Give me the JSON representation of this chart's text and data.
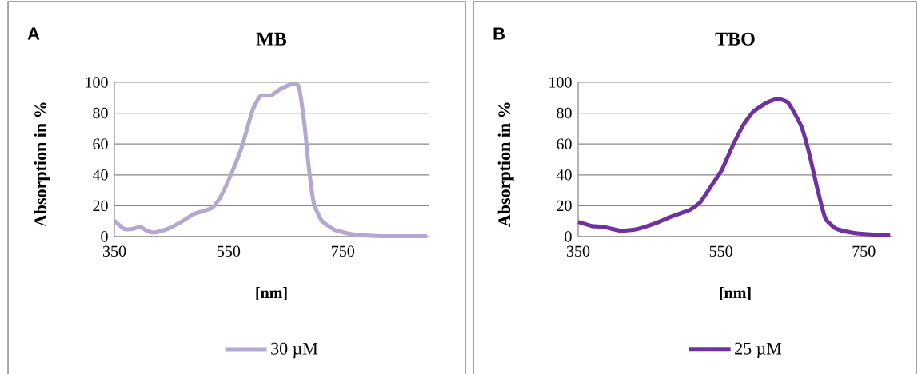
{
  "chart_data": [
    {
      "type": "line",
      "title": "MB",
      "xlabel": "[nm]",
      "ylabel": "Absorption in %",
      "annotations": [
        "A"
      ],
      "xlim": [
        350,
        900
      ],
      "xticks": [
        350,
        550,
        750
      ],
      "ylim": [
        0,
        100
      ],
      "yticks": [
        0,
        20,
        40,
        60,
        80,
        100
      ],
      "grid": "y",
      "legend": "bottom",
      "marker": "none",
      "series": [
        {
          "name": "30 µM",
          "color": "#b4a7d0",
          "x": [
            350,
            367,
            383,
            395,
            406,
            420,
            443,
            467,
            489,
            508,
            522,
            536,
            555,
            573,
            592,
            606,
            624,
            643,
            662,
            673,
            683,
            690,
            699,
            713,
            736,
            764,
            801,
            848,
            897
          ],
          "values": [
            10.3,
            5,
            5,
            6.5,
            3.8,
            2.6,
            5,
            9.5,
            14.6,
            16.8,
            18.9,
            25.8,
            41,
            58,
            82,
            91.4,
            91.4,
            96.2,
            98.8,
            97,
            72,
            46,
            22,
            10.3,
            4.3,
            1.7,
            0.5,
            0.2,
            0.2
          ]
        }
      ]
    },
    {
      "type": "line",
      "title": "TBO",
      "xlabel": "[nm]",
      "ylabel": "Absorption in %",
      "annotations": [
        "B"
      ],
      "xlim": [
        350,
        790
      ],
      "xticks": [
        350,
        550,
        750
      ],
      "ylim": [
        0,
        100
      ],
      "yticks": [
        0,
        20,
        40,
        60,
        80,
        100
      ],
      "grid": "y",
      "legend": "bottom",
      "marker": "none",
      "series": [
        {
          "name": "25 µM",
          "color": "#7030a0",
          "x": [
            350,
            369,
            384,
            410,
            432,
            458,
            480,
            506,
            521,
            536,
            551,
            566,
            581,
            595,
            614,
            629,
            644,
            662,
            673,
            685,
            696,
            711,
            733,
            759,
            787
          ],
          "values": [
            9.5,
            6.9,
            6.4,
            3.8,
            4.8,
            8.6,
            12.9,
            17.2,
            22.3,
            32.6,
            43,
            58.4,
            72,
            80.8,
            86.8,
            89.3,
            86.8,
            72,
            55,
            31,
            12,
            5.2,
            2.6,
            1.4,
            1
          ]
        }
      ]
    }
  ]
}
